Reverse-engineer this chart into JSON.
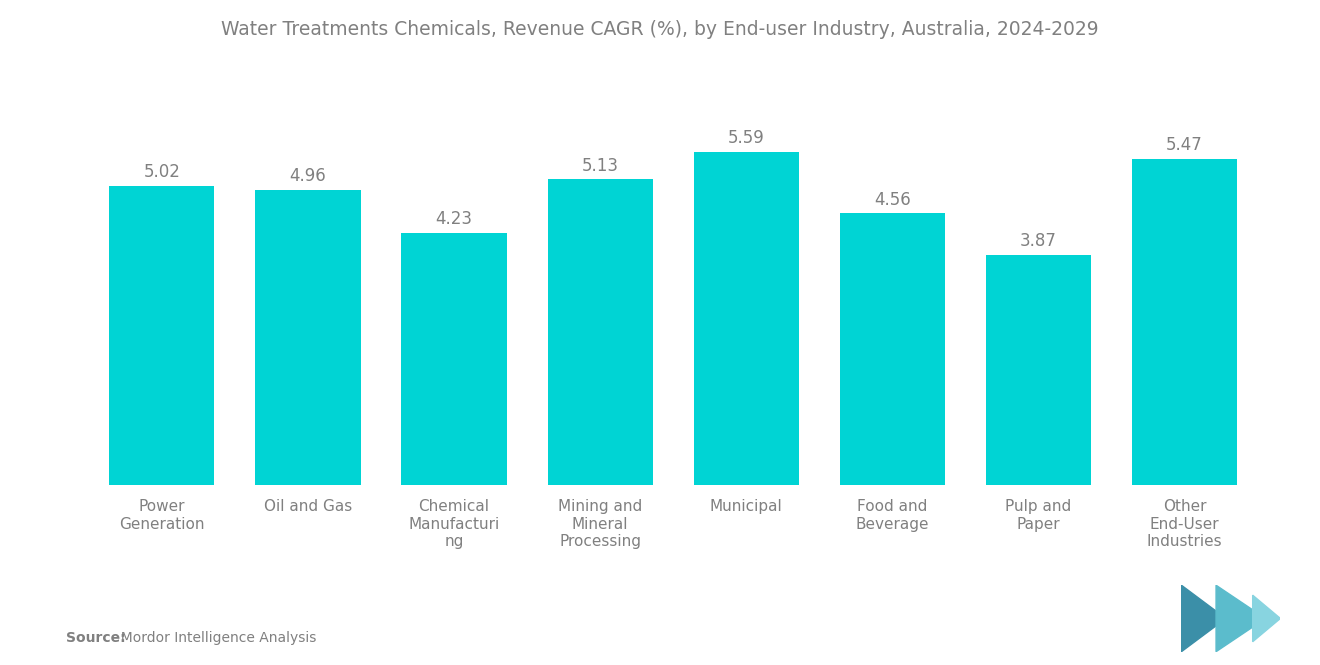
{
  "title": "Water Treatments Chemicals, Revenue CAGR (%), by End-user Industry, Australia, 2024-2029",
  "categories": [
    "Power\nGeneration",
    "Oil and Gas",
    "Chemical\nManufacturi\nng",
    "Mining and\nMineral\nProcessing",
    "Municipal",
    "Food and\nBeverage",
    "Pulp and\nPaper",
    "Other\nEnd-User\nIndustries"
  ],
  "values": [
    5.02,
    4.96,
    4.23,
    5.13,
    5.59,
    4.56,
    3.87,
    5.47
  ],
  "bar_color": "#00D4D4",
  "background_color": "#ffffff",
  "title_color": "#808080",
  "label_color": "#808080",
  "value_color": "#808080",
  "source_label_bold": "Source:",
  "source_label_normal": "  Mordor Intelligence Analysis",
  "title_fontsize": 13.5,
  "label_fontsize": 11,
  "value_fontsize": 12,
  "source_fontsize": 10,
  "ylim": [
    0,
    6.8
  ],
  "bar_width": 0.72
}
